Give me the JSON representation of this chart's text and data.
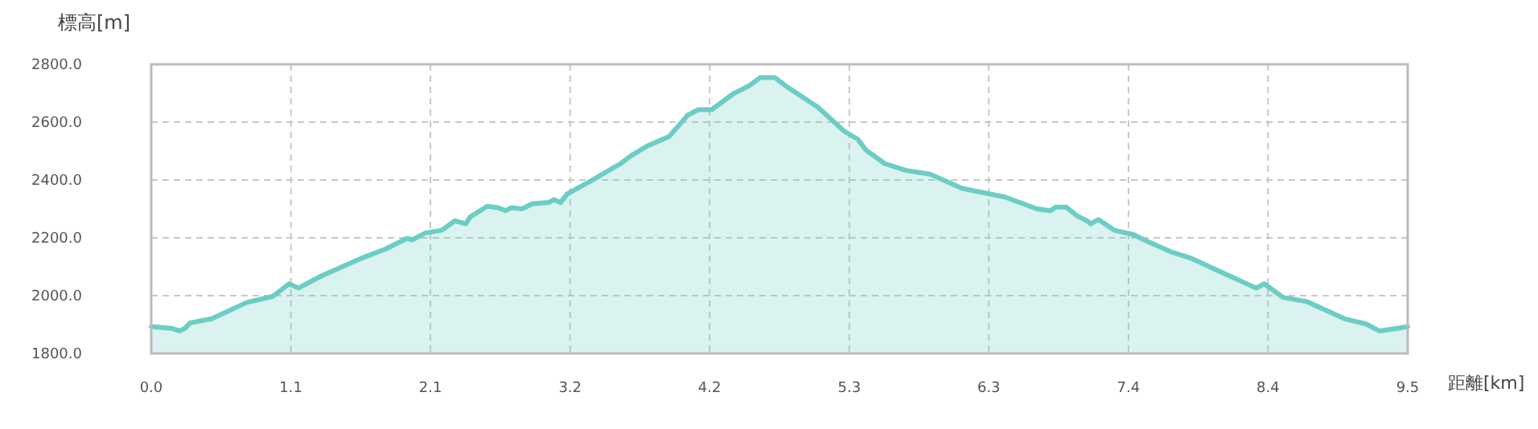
{
  "chart_data": {
    "type": "area",
    "xlabel": "距離[km]",
    "ylabel": "標高[m]",
    "xlim": [
      0,
      9.5
    ],
    "ylim": [
      1800,
      2800
    ],
    "xticks": [
      {
        "value": 0,
        "label": "0.0"
      },
      {
        "value": 1.056,
        "label": "1.1"
      },
      {
        "value": 2.111,
        "label": "2.1"
      },
      {
        "value": 3.167,
        "label": "3.2"
      },
      {
        "value": 4.222,
        "label": "4.2"
      },
      {
        "value": 5.278,
        "label": "5.3"
      },
      {
        "value": 6.333,
        "label": "6.3"
      },
      {
        "value": 7.389,
        "label": "7.4"
      },
      {
        "value": 8.444,
        "label": "8.4"
      },
      {
        "value": 9.5,
        "label": "9.5"
      }
    ],
    "yticks": [
      {
        "value": 1800,
        "label": "1800.0"
      },
      {
        "value": 2000,
        "label": "2000.0"
      },
      {
        "value": 2200,
        "label": "2200.0"
      },
      {
        "value": 2400,
        "label": "2400.0"
      },
      {
        "value": 2600,
        "label": "2600.0"
      },
      {
        "value": 2800,
        "label": "2800.0"
      }
    ],
    "grid": true,
    "line_style": "solid",
    "marker": "none",
    "series": [
      {
        "color": "#6ccdc4",
        "x": [
          0,
          0.154,
          0.214,
          0.255,
          0.295,
          0.457,
          0.72,
          0.922,
          1.043,
          1.113,
          1.286,
          1.61,
          1.771,
          1.933,
          1.974,
          2.075,
          2.196,
          2.297,
          2.378,
          2.411,
          2.54,
          2.621,
          2.681,
          2.722,
          2.803,
          2.884,
          3.005,
          3.045,
          3.094,
          3.146,
          3.309,
          3.551,
          3.632,
          3.753,
          3.915,
          4.056,
          4.137,
          4.238,
          4.4,
          4.522,
          4.603,
          4.635,
          4.716,
          4.796,
          5.039,
          5.241,
          5.342,
          5.403,
          5.545,
          5.707,
          5.888,
          6.131,
          6.455,
          6.697,
          6.798,
          6.839,
          6.919,
          7.0,
          7.082,
          7.102,
          7.162,
          7.284,
          7.427,
          7.506,
          7.708,
          7.87,
          8.153,
          8.355,
          8.416,
          8.557,
          8.739,
          9.023,
          9.185,
          9.286,
          9.448,
          9.5
        ],
        "values": [
          1893,
          1887,
          1878,
          1887,
          1906,
          1920,
          1976,
          1998,
          2041,
          2026,
          2068,
          2133,
          2161,
          2198,
          2193,
          2217,
          2226,
          2259,
          2248,
          2272,
          2309,
          2304,
          2294,
          2304,
          2300,
          2318,
          2322,
          2332,
          2322,
          2352,
          2393,
          2457,
          2485,
          2518,
          2550,
          2624,
          2643,
          2643,
          2698,
          2726,
          2754,
          2754,
          2754,
          2726,
          2652,
          2568,
          2541,
          2504,
          2457,
          2433,
          2420,
          2371,
          2341,
          2300,
          2294,
          2306,
          2306,
          2276,
          2257,
          2248,
          2263,
          2226,
          2211,
          2193,
          2152,
          2128,
          2068,
          2026,
          2041,
          1994,
          1979,
          1920,
          1902,
          1878,
          1889,
          1893
        ]
      }
    ]
  }
}
